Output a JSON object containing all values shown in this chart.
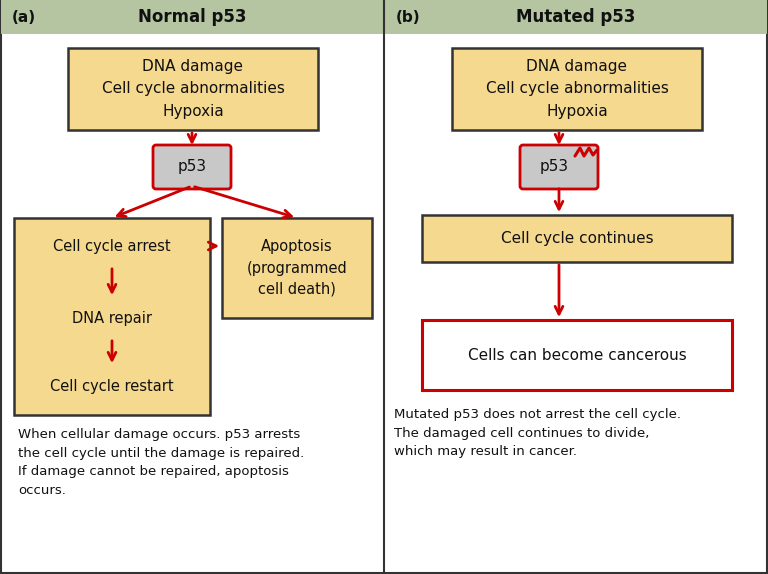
{
  "bg_color": "#ffffff",
  "header_color": "#b5c4a1",
  "box_fill_yellow": "#f5d98e",
  "box_fill_white": "#ffffff",
  "box_edge_dark": "#333333",
  "box_edge_red": "#cc0000",
  "arrow_color": "#cc0000",
  "p53_edge_red": "#cc0000",
  "text_color": "#111111",
  "title_a": "Normal p53",
  "title_b": "Mutated p53",
  "label_a": "(a)",
  "label_b": "(b)",
  "box1_text": "DNA damage\nCell cycle abnormalities\nHypoxia",
  "p53a_text": "p53",
  "p53b_text": "p53",
  "left_box_line1": "Cell cycle arrest",
  "left_box_line2": "DNA repair",
  "left_box_line3": "Cell cycle restart",
  "right_box_text": "Apoptosis\n(programmed\ncell death)",
  "box2b_text": "Cell cycle continues",
  "box3b_text": "Cells can become cancerous",
  "caption_a": "When cellular damage occurs. p53 arrests\nthe cell cycle until the damage is repaired.\nIf damage cannot be repaired, apoptosis\noccurs.",
  "caption_b": "Mutated p53 does not arrest the cell cycle.\nThe damaged cell continues to divide,\nwhich may result in cancer."
}
